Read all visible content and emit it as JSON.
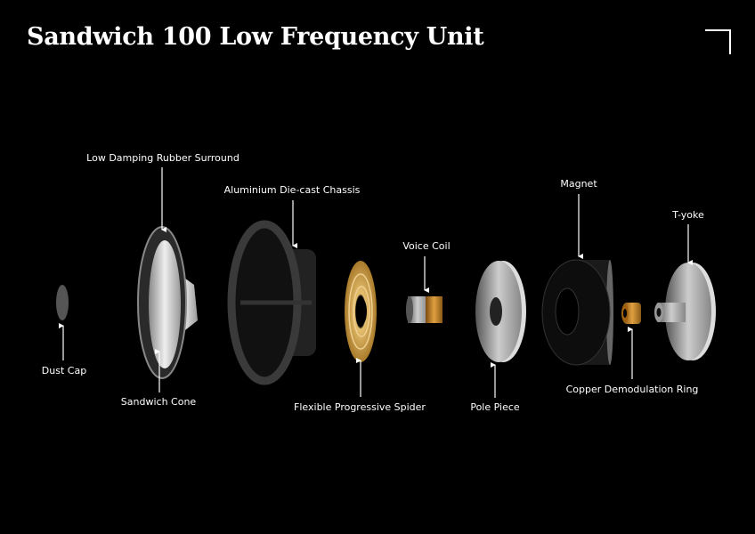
{
  "title": "Sandwich 100 Low Frequency Unit",
  "labels": {
    "dust_cap": "Dust Cap",
    "surround": "Low Damping Rubber Surround",
    "cone": "Sandwich Cone",
    "chassis": "Aluminium Die-cast Chassis",
    "spider": "Flexible Progressive Spider",
    "voice_coil": "Voice Coil",
    "pole_piece": "Pole Piece",
    "magnet": "Magnet",
    "copper_ring": "Copper Demodulation Ring",
    "t_yoke": "T-yoke"
  },
  "colors": {
    "background": "#000000",
    "text": "#ffffff",
    "gold": "#c89a3a",
    "steel": "#b8b8b8",
    "copper": "#c07a20"
  }
}
